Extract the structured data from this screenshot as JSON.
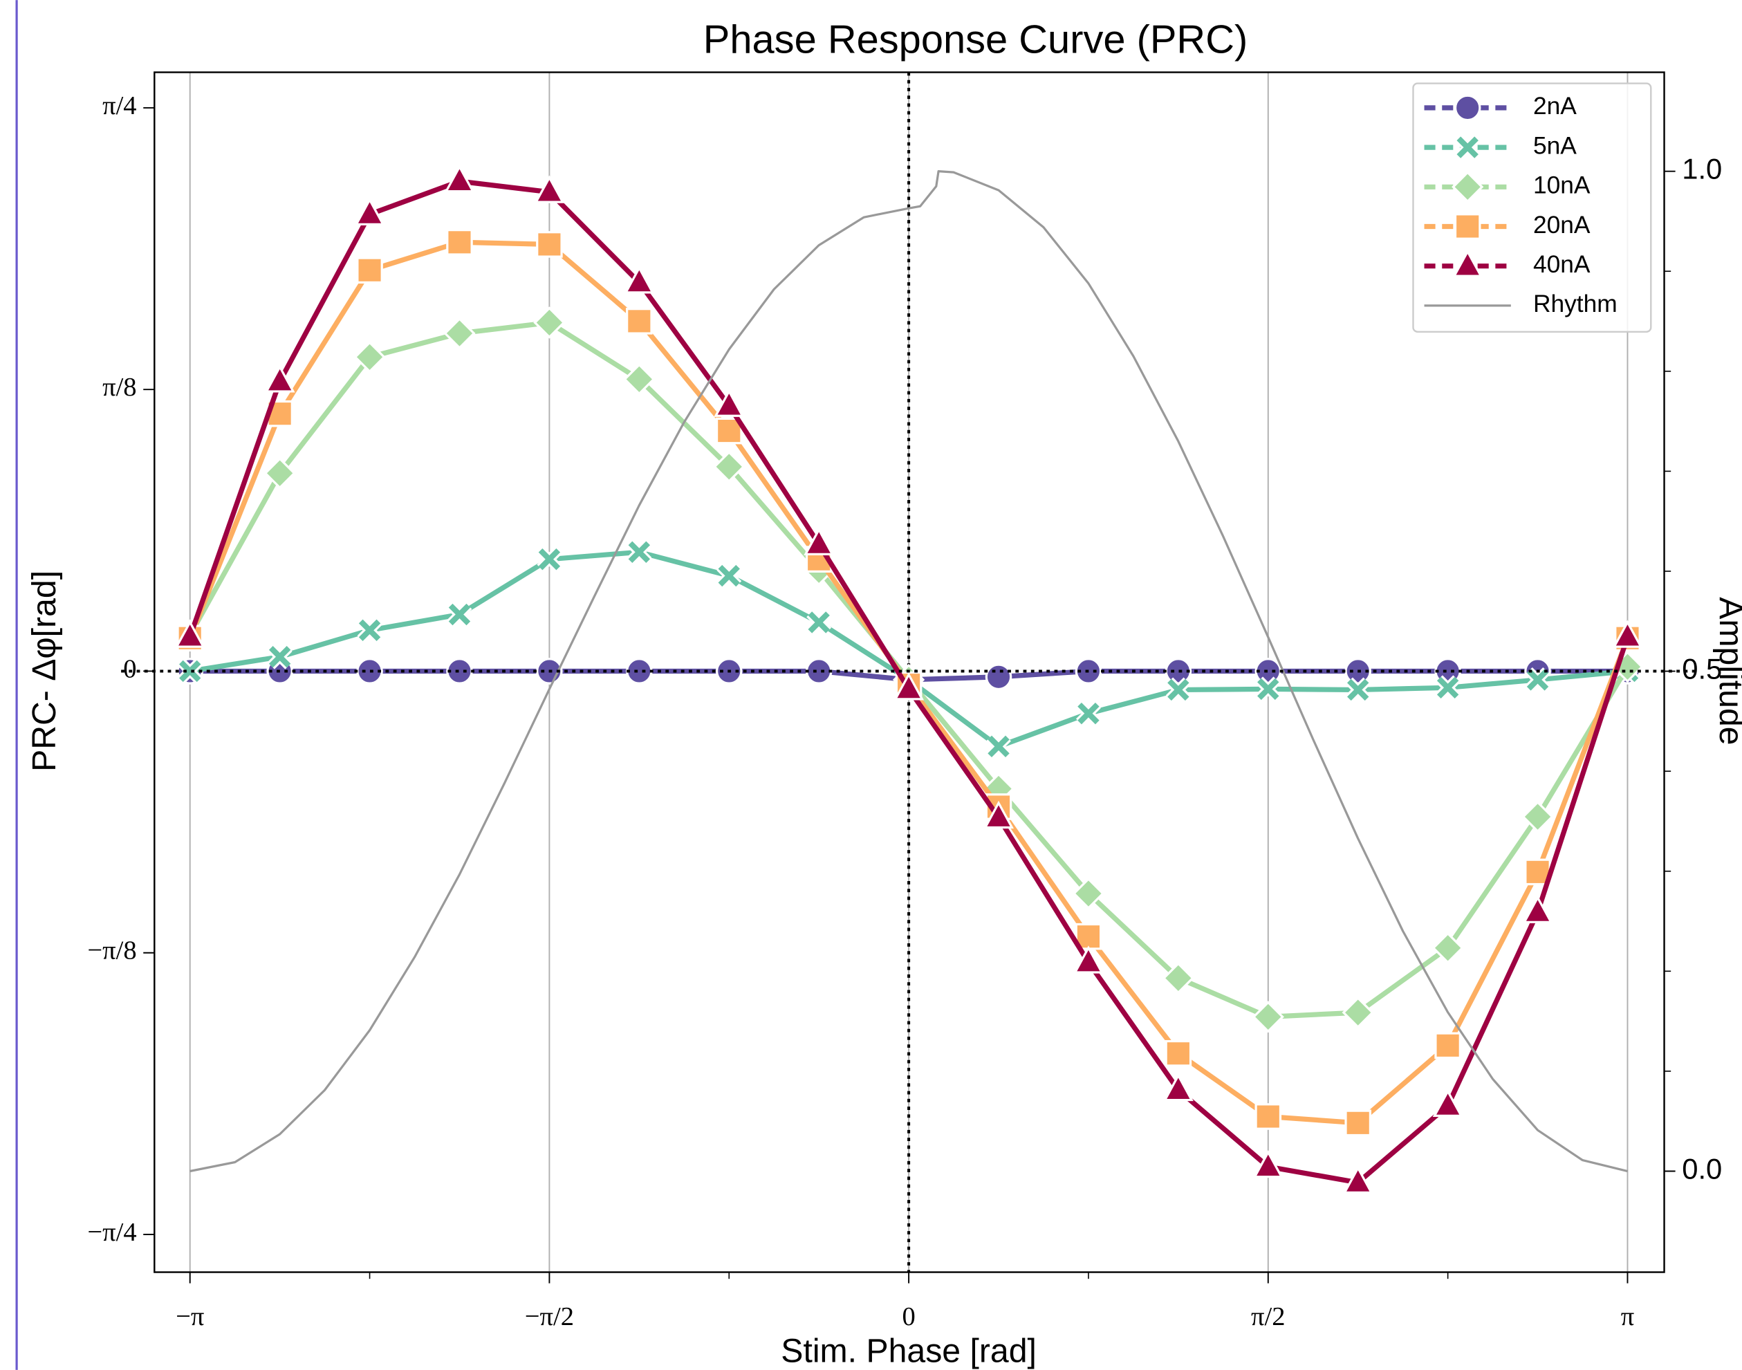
{
  "chart_data": {
    "type": "line",
    "title": "Phase Response Curve (PRC)",
    "xlabel": "Stim. Phase [rad]",
    "ylabel": "PRC- Δφ[rad]",
    "y2label": "Amplitude",
    "x": [
      -3.14159,
      -2.74889,
      -2.35619,
      -1.9635,
      -1.5708,
      -1.1781,
      -0.7854,
      -0.3927,
      0,
      0.3927,
      0.7854,
      1.1781,
      1.5708,
      1.9635,
      2.35619,
      2.74889,
      3.14159
    ],
    "series": [
      {
        "name": "2nA",
        "color": "#5e4fa2",
        "marker": "o",
        "values": [
          0,
          0,
          0,
          0,
          0,
          0,
          0,
          0,
          -0.012,
          -0.008,
          0,
          0,
          0,
          0,
          0,
          0,
          0
        ]
      },
      {
        "name": "5nA",
        "color": "#66c2a5",
        "marker": "x",
        "values": [
          0,
          0.02,
          0.057,
          0.079,
          0.156,
          0.166,
          0.133,
          0.068,
          -0.012,
          -0.105,
          -0.059,
          -0.026,
          -0.025,
          -0.026,
          -0.023,
          -0.012,
          0
        ]
      },
      {
        "name": "10nA",
        "color": "#abdda4",
        "marker": "D",
        "values": [
          0.05,
          0.276,
          0.438,
          0.471,
          0.486,
          0.407,
          0.285,
          0.141,
          -0.012,
          -0.164,
          -0.31,
          -0.428,
          -0.482,
          -0.476,
          -0.386,
          -0.203,
          0.006
        ]
      },
      {
        "name": "20nA",
        "color": "#fdae61",
        "marker": "s",
        "values": [
          0.046,
          0.359,
          0.559,
          0.598,
          0.595,
          0.488,
          0.335,
          0.156,
          -0.019,
          -0.189,
          -0.37,
          -0.533,
          -0.621,
          -0.63,
          -0.522,
          -0.28,
          0.046
        ]
      },
      {
        "name": "40nA",
        "color": "#9e0142",
        "marker": "^",
        "values": [
          0.048,
          0.404,
          0.637,
          0.683,
          0.668,
          0.542,
          0.37,
          0.177,
          -0.025,
          -0.204,
          -0.406,
          -0.584,
          -0.691,
          -0.713,
          -0.606,
          -0.336,
          0.048
        ]
      },
      {
        "name": "Rhythm",
        "color": "#999999",
        "axis": "y2",
        "x": [
          -3.142,
          -2.945,
          -2.749,
          -2.553,
          -2.356,
          -2.16,
          -1.963,
          -1.767,
          -1.571,
          -1.374,
          -1.178,
          -0.982,
          -0.785,
          -0.589,
          -0.393,
          -0.196,
          0,
          0.05,
          0.12,
          0.13,
          0.196,
          0.393,
          0.589,
          0.785,
          0.982,
          1.178,
          1.374,
          1.571,
          1.767,
          1.963,
          2.16,
          2.356,
          2.553,
          2.749,
          2.945,
          3.142
        ],
        "values": [
          0,
          0.009,
          0.037,
          0.081,
          0.141,
          0.214,
          0.297,
          0.388,
          0.482,
          0.575,
          0.666,
          0.749,
          0.822,
          0.882,
          0.926,
          0.954,
          0.963,
          0.965,
          0.985,
          1.0,
          0.999,
          0.981,
          0.944,
          0.888,
          0.815,
          0.73,
          0.635,
          0.534,
          0.432,
          0.333,
          0.24,
          0.159,
          0.092,
          0.041,
          0.011,
          0
        ]
      }
    ],
    "xlim": [
      -3.297,
      3.302
    ],
    "ylim": [
      -0.838,
      0.835
    ],
    "y2lim": [
      -0.101,
      1.099
    ],
    "xticks": [
      {
        "value": -3.14159,
        "label": "−π"
      },
      {
        "value": -1.5708,
        "label": "−π/2"
      },
      0,
      {
        "value": 1.5708,
        "label": "π/2"
      },
      {
        "value": 3.14159,
        "label": "π"
      }
    ],
    "xminorticks": [
      -2.35619,
      -0.7854,
      0.7854,
      2.35619
    ],
    "yticks": [
      {
        "value": -0.785398,
        "label": "−π/4"
      },
      {
        "value": -0.392699,
        "label": "−π/8"
      },
      0,
      {
        "value": 0.392699,
        "label": "π/8"
      },
      {
        "value": 0.785398,
        "label": "π/4"
      }
    ],
    "y2ticks": [
      {
        "value": 0,
        "label": "0.0"
      },
      0.5,
      {
        "value": 1,
        "label": "1.0"
      }
    ],
    "y2minorticks": [
      0.1,
      0.2,
      0.3,
      0.4,
      0.6,
      0.7,
      0.8,
      0.9
    ],
    "grid": "x",
    "zero_lines": true,
    "legend": "upper right"
  }
}
